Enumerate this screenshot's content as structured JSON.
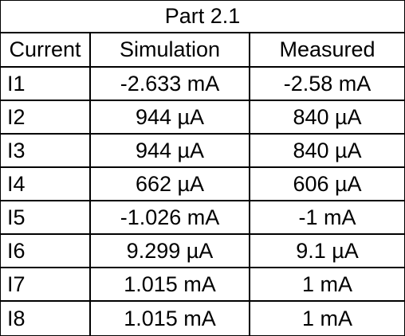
{
  "table": {
    "title": "Part 2.1",
    "headers": [
      "Current",
      "Simulation",
      "Measured"
    ],
    "rows": [
      [
        "I1",
        "-2.633 mA",
        "-2.58 mA"
      ],
      [
        "I2",
        "944 µA",
        "840 µA"
      ],
      [
        "I3",
        "944 µA",
        "840 µA"
      ],
      [
        "I4",
        "662 µA",
        "606 µA"
      ],
      [
        "I5",
        "-1.026 mA",
        "-1 mA"
      ],
      [
        "I6",
        "9.299 µA",
        "9.1 µA"
      ],
      [
        "I7",
        "1.015 mA",
        "1 mA"
      ],
      [
        "I8",
        "1.015 mA",
        "1 mA"
      ]
    ]
  }
}
